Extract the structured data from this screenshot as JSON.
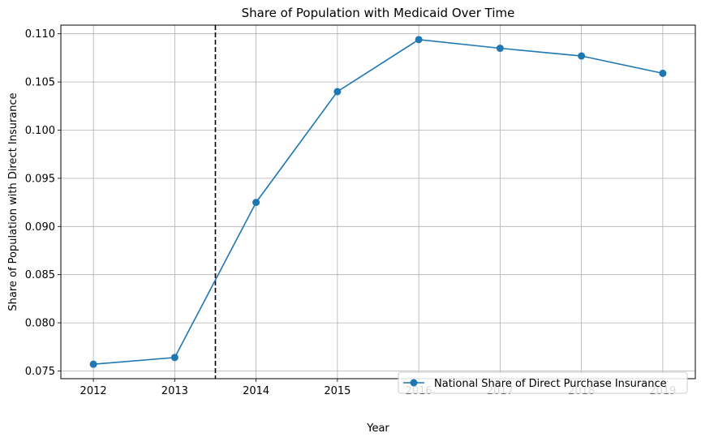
{
  "chart_data": {
    "type": "line",
    "title": "Share of Population with Medicaid Over Time",
    "xlabel": "Year",
    "ylabel": "Share of Population with Direct Insurance",
    "x": [
      2012,
      2013,
      2014,
      2015,
      2016,
      2017,
      2018,
      2019
    ],
    "series": [
      {
        "name": "National Share of Direct Purchase Insurance",
        "color": "#1f77b4",
        "marker": "circle",
        "values": [
          0.0757,
          0.0764,
          0.0925,
          0.104,
          0.1094,
          0.1085,
          0.1077,
          0.1059
        ]
      }
    ],
    "xlim": [
      2011.6,
      2019.4
    ],
    "ylim": [
      0.0742,
      0.1109
    ],
    "xticks": [
      "2012",
      "2013",
      "2014",
      "2015",
      "2016",
      "2017",
      "2018",
      "2019"
    ],
    "yticks": [
      "0.075",
      "0.080",
      "0.085",
      "0.090",
      "0.095",
      "0.100",
      "0.105",
      "0.110"
    ],
    "vertical_reference_line": {
      "x": 2013.5,
      "style": "dashed",
      "color": "#000000"
    },
    "grid": true,
    "legend_position": "lower-right"
  }
}
